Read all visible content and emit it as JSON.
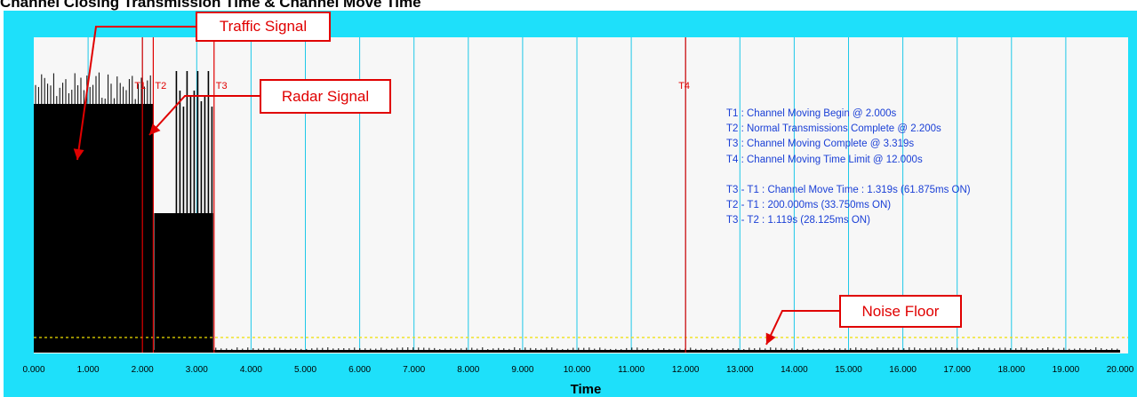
{
  "chart_data": {
    "type": "line",
    "title": "Channel Closing Transmission Time & Channel Move Time",
    "xlabel": "Time",
    "ylabel": "",
    "xlim": [
      0,
      20
    ],
    "x_ticks": [
      "0.000",
      "1.000",
      "2.000",
      "3.000",
      "4.000",
      "5.000",
      "6.000",
      "7.000",
      "8.000",
      "9.000",
      "10.000",
      "11.000",
      "12.000",
      "13.000",
      "14.000",
      "15.000",
      "16.000",
      "17.000",
      "18.000",
      "19.000",
      "20.000"
    ],
    "grid": true,
    "markers": [
      {
        "label": "T1",
        "x": 2.0
      },
      {
        "label": "T2",
        "x": 2.2
      },
      {
        "label": "T3",
        "x": 3.319
      },
      {
        "label": "T4",
        "x": 12.0
      }
    ],
    "signal": {
      "dense_block": [
        0.0,
        2.2
      ],
      "burst_pulses": [
        2.2,
        3.319
      ]
    },
    "annotations": {
      "lines": [
        "T1 : Channel Moving Begin @ 2.000s",
        "T2 : Normal Transmissions Complete @ 2.200s",
        "T3 : Channel Moving Complete @ 3.319s",
        "T4 : Channel Moving Time Limit @ 12.000s"
      ],
      "results": [
        "T3 - T1 : Channel Move Time : 1.319s (61.875ms ON)",
        "T2 - T1 : 200.000ms (33.750ms ON)",
        "T3 - T2 : 1.119s (28.125ms ON)"
      ]
    },
    "callouts": {
      "traffic": "Traffic Signal",
      "radar": "Radar Signal",
      "noise": "Noise Floor"
    }
  },
  "colors": {
    "panel": "#1ee0fa",
    "plot_bg": "#f7f7f7",
    "grid": "#1ec8e8",
    "marker": "#e00000",
    "signal": "#000000",
    "noise_floor": "#f0e000",
    "annotation_text": "#1a3fd6"
  }
}
